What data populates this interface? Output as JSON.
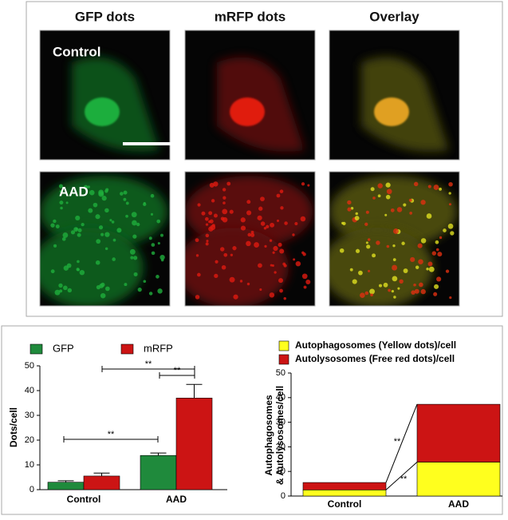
{
  "figure": {
    "columns": [
      "GFP dots",
      "mRFP dots",
      "Overlay"
    ],
    "rows": [
      "Control",
      "AAD"
    ]
  },
  "chart_data": [
    {
      "type": "bar",
      "categories": [
        "Control",
        "AAD"
      ],
      "ylabel": "Dots/cell",
      "series": [
        {
          "name": "GFP",
          "color": "#1f8a3c",
          "values": [
            3,
            13.8
          ],
          "errors": [
            0.6,
            1
          ]
        },
        {
          "name": "mRFP",
          "color": "#cc1414",
          "values": [
            5.5,
            37
          ],
          "errors": [
            1.2,
            5.5
          ]
        }
      ],
      "ylim": [
        0,
        50
      ],
      "yticks": [
        0,
        10,
        20,
        30,
        40,
        50
      ],
      "annotations": [
        "**",
        "**",
        "**"
      ]
    },
    {
      "type": "stacked_bar",
      "categories": [
        "Control",
        "AAD"
      ],
      "ylabel": [
        "Autophagosomes",
        "& Autolysosomes/cell"
      ],
      "series": [
        {
          "name": "Autophagosomes (Yellow dots)/cell",
          "color": "#ffff1e",
          "values": [
            2.5,
            13.8
          ]
        },
        {
          "name": "Autolysosomes (Free red dots)/cell",
          "color": "#cc1414",
          "values": [
            3,
            23.5
          ]
        }
      ],
      "ylim": [
        0,
        50
      ],
      "yticks": [
        0,
        10,
        20,
        30,
        40,
        50
      ],
      "annotations": [
        "**",
        "**"
      ]
    }
  ]
}
